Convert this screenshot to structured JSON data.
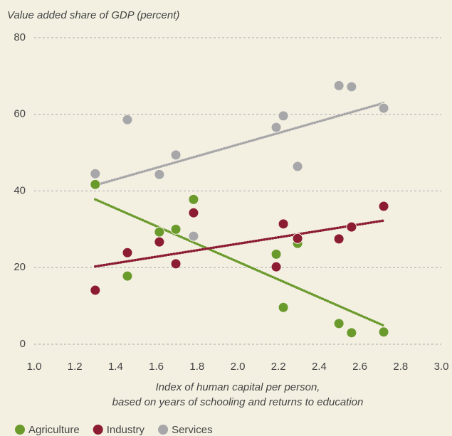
{
  "chart_data": {
    "type": "scatter",
    "title": "Value added share of GDP (percent)",
    "xlabel": [
      "Index of human capital per person,",
      "based on years of schooling and returns to education"
    ],
    "x": [
      1.3,
      1.458,
      1.615,
      1.696,
      1.783,
      2.189,
      2.224,
      2.294,
      2.497,
      2.559,
      2.717
    ],
    "trend_x": [
      1.3,
      2.72
    ],
    "series": [
      {
        "name": "Agriculture",
        "color": "#6b9a2c",
        "values": [
          41.7,
          17.8,
          29.3,
          30,
          37.8,
          23.5,
          9.6,
          26.3,
          5.4,
          3,
          3.2
        ],
        "trend": [
          37.8,
          4.8
        ]
      },
      {
        "name": "Industry",
        "color": "#8c1c32",
        "values": [
          14.1,
          23.9,
          26.7,
          21,
          34.3,
          20.2,
          31.4,
          27.6,
          27.5,
          30.6,
          36
        ],
        "trend": [
          20.3,
          32.3
        ]
      },
      {
        "name": "Services",
        "color": "#a7a7a9",
        "values": [
          44.5,
          58.6,
          44.3,
          49.4,
          28.2,
          56.6,
          59.6,
          46.4,
          67.5,
          67.2,
          61.6
        ],
        "trend": [
          41.5,
          63
        ]
      }
    ],
    "xlim": [
      1.0,
      3.0
    ],
    "xticks": [
      {
        "value": 1,
        "label": "1.0"
      },
      1.2,
      1.4,
      1.6,
      1.8,
      {
        "value": 2,
        "label": "2.0"
      },
      2.2,
      2.4,
      2.6,
      2.8,
      {
        "value": 3,
        "label": "3.0"
      }
    ],
    "ylim": [
      0,
      80
    ],
    "yticks": [
      0,
      20,
      40,
      60,
      80
    ],
    "grid": true,
    "legend": "bottom"
  }
}
